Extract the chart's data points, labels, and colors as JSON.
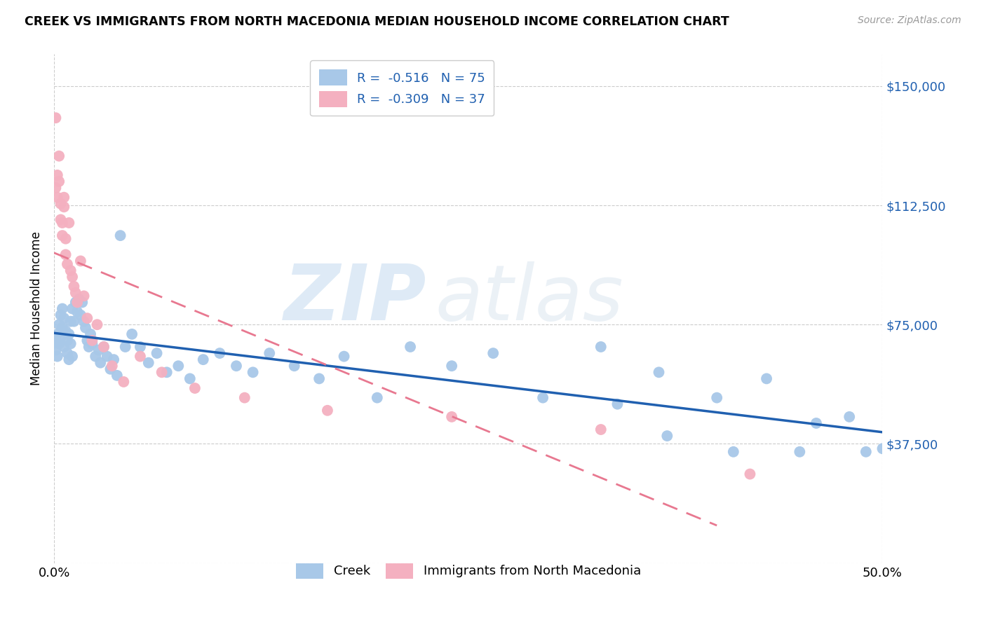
{
  "title": "CREEK VS IMMIGRANTS FROM NORTH MACEDONIA MEDIAN HOUSEHOLD INCOME CORRELATION CHART",
  "source": "Source: ZipAtlas.com",
  "ylabel": "Median Household Income",
  "yticks": [
    0,
    37500,
    75000,
    112500,
    150000
  ],
  "ytick_labels": [
    "",
    "$37,500",
    "$75,000",
    "$112,500",
    "$150,000"
  ],
  "xlim": [
    0.0,
    0.5
  ],
  "ylim": [
    0,
    160000
  ],
  "legend_creek": {
    "R": "-0.516",
    "N": "75",
    "color": "#a8c8e8"
  },
  "legend_macedonia": {
    "R": "-0.309",
    "N": "37",
    "color": "#f4b0c0"
  },
  "creek_line_color": "#2060b0",
  "macedonia_line_color": "#e87890",
  "background_color": "#ffffff",
  "grid_color": "#cccccc",
  "creek_scatter_x": [
    0.001,
    0.001,
    0.002,
    0.002,
    0.003,
    0.003,
    0.004,
    0.004,
    0.005,
    0.005,
    0.006,
    0.006,
    0.007,
    0.008,
    0.008,
    0.009,
    0.009,
    0.01,
    0.01,
    0.011,
    0.011,
    0.012,
    0.013,
    0.014,
    0.015,
    0.016,
    0.017,
    0.018,
    0.019,
    0.02,
    0.021,
    0.022,
    0.023,
    0.025,
    0.027,
    0.028,
    0.03,
    0.032,
    0.034,
    0.036,
    0.038,
    0.04,
    0.043,
    0.047,
    0.052,
    0.057,
    0.062,
    0.068,
    0.075,
    0.082,
    0.09,
    0.1,
    0.11,
    0.12,
    0.13,
    0.145,
    0.16,
    0.175,
    0.195,
    0.215,
    0.24,
    0.265,
    0.295,
    0.33,
    0.365,
    0.4,
    0.43,
    0.46,
    0.48,
    0.49,
    0.34,
    0.37,
    0.41,
    0.45,
    0.5
  ],
  "creek_scatter_y": [
    70000,
    67000,
    72000,
    65000,
    75000,
    69000,
    78000,
    71000,
    80000,
    74000,
    77000,
    68000,
    73000,
    70000,
    66000,
    72000,
    64000,
    76000,
    69000,
    65000,
    80000,
    76000,
    82000,
    79000,
    83000,
    78000,
    82000,
    76000,
    74000,
    70000,
    68000,
    72000,
    69000,
    65000,
    67000,
    63000,
    68000,
    65000,
    61000,
    64000,
    59000,
    103000,
    68000,
    72000,
    68000,
    63000,
    66000,
    60000,
    62000,
    58000,
    64000,
    66000,
    62000,
    60000,
    66000,
    62000,
    58000,
    65000,
    52000,
    68000,
    62000,
    66000,
    52000,
    68000,
    60000,
    52000,
    58000,
    44000,
    46000,
    35000,
    50000,
    40000,
    35000,
    35000,
    36000
  ],
  "macedonia_scatter_x": [
    0.001,
    0.001,
    0.002,
    0.002,
    0.003,
    0.003,
    0.004,
    0.004,
    0.005,
    0.005,
    0.006,
    0.006,
    0.007,
    0.007,
    0.008,
    0.009,
    0.01,
    0.011,
    0.012,
    0.013,
    0.014,
    0.016,
    0.018,
    0.02,
    0.023,
    0.026,
    0.03,
    0.035,
    0.042,
    0.052,
    0.065,
    0.085,
    0.115,
    0.165,
    0.24,
    0.33,
    0.42
  ],
  "macedonia_scatter_y": [
    140000,
    118000,
    122000,
    115000,
    128000,
    120000,
    113000,
    108000,
    107000,
    103000,
    115000,
    112000,
    97000,
    102000,
    94000,
    107000,
    92000,
    90000,
    87000,
    85000,
    82000,
    95000,
    84000,
    77000,
    70000,
    75000,
    68000,
    62000,
    57000,
    65000,
    60000,
    55000,
    52000,
    48000,
    46000,
    42000,
    28000
  ]
}
